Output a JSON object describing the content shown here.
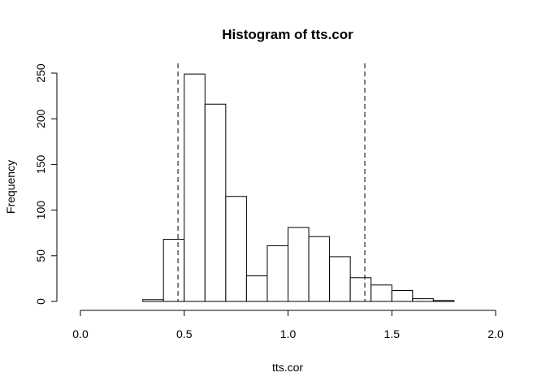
{
  "chart_data": {
    "type": "bar",
    "title": "Histogram of tts.cor",
    "xlabel": "tts.cor",
    "ylabel": "Frequency",
    "xlim": [
      0.0,
      2.0
    ],
    "ylim": [
      0,
      250
    ],
    "x_ticks": [
      "0.0",
      "0.5",
      "1.0",
      "1.5",
      "2.0"
    ],
    "y_ticks": [
      "0",
      "50",
      "100",
      "150",
      "200",
      "250"
    ],
    "bins": [
      {
        "start": 0.3,
        "end": 0.4,
        "count": 2
      },
      {
        "start": 0.4,
        "end": 0.5,
        "count": 68
      },
      {
        "start": 0.5,
        "end": 0.6,
        "count": 249
      },
      {
        "start": 0.6,
        "end": 0.7,
        "count": 216
      },
      {
        "start": 0.7,
        "end": 0.8,
        "count": 115
      },
      {
        "start": 0.8,
        "end": 0.9,
        "count": 28
      },
      {
        "start": 0.9,
        "end": 1.0,
        "count": 61
      },
      {
        "start": 1.0,
        "end": 1.1,
        "count": 81
      },
      {
        "start": 1.1,
        "end": 1.2,
        "count": 71
      },
      {
        "start": 1.2,
        "end": 1.3,
        "count": 49
      },
      {
        "start": 1.3,
        "end": 1.4,
        "count": 26
      },
      {
        "start": 1.4,
        "end": 1.5,
        "count": 18
      },
      {
        "start": 1.5,
        "end": 1.6,
        "count": 12
      },
      {
        "start": 1.6,
        "end": 1.7,
        "count": 3
      },
      {
        "start": 1.7,
        "end": 1.8,
        "count": 1
      }
    ],
    "reference_lines": [
      0.47,
      1.37
    ],
    "grid": false,
    "legend": "none"
  }
}
